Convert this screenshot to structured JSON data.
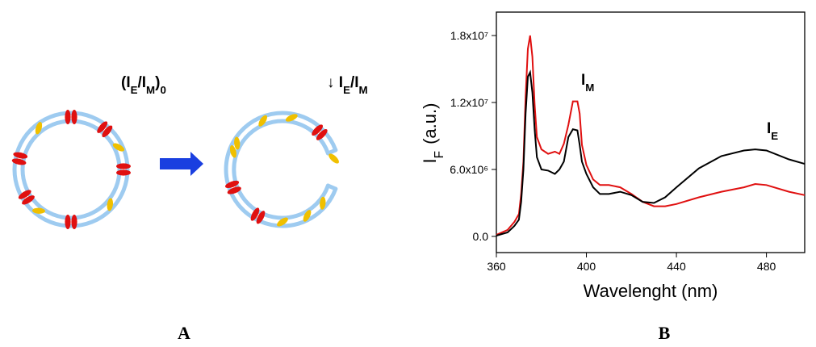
{
  "diagram": {
    "before_label": [
      "(I",
      "E",
      "/I",
      "M",
      ")",
      "0"
    ],
    "after_label": [
      "↓ I",
      "E",
      "/I",
      "M"
    ]
  },
  "panel_labels": [
    "A",
    "B"
  ],
  "chart_data": {
    "type": "line",
    "xlabel": "Wavelenght (nm)",
    "ylabel": {
      "main": "I",
      "sub": "F",
      "unit": "(a.u.)"
    },
    "annotations": [
      [
        "I",
        "M"
      ],
      [
        "I",
        "E"
      ]
    ],
    "x": [
      360,
      365,
      368,
      370,
      371,
      372,
      373,
      374,
      375,
      376,
      377,
      378,
      380,
      383,
      386,
      388,
      390,
      392,
      394,
      396,
      397,
      398,
      400,
      403,
      406,
      410,
      415,
      420,
      425,
      430,
      435,
      440,
      450,
      460,
      470,
      475,
      480,
      490,
      497
    ],
    "series": [
      {
        "color": "#e01010",
        "values": [
          140000,
          580000,
          1300000,
          2000000,
          3800000,
          6700000,
          12500000,
          16800000,
          18000000,
          16100000,
          11800000,
          8900000,
          7800000,
          7400000,
          7600000,
          7400000,
          8300000,
          10000000,
          12100000,
          12100000,
          11000000,
          8200000,
          6400000,
          5100000,
          4600000,
          4600000,
          4400000,
          3800000,
          3100000,
          2700000,
          2700000,
          2900000,
          3500000,
          4000000,
          4400000,
          4700000,
          4600000,
          4000000,
          3700000
        ]
      },
      {
        "color": "#000000",
        "values": [
          70000,
          360000,
          940000,
          1500000,
          3100000,
          6000000,
          11000000,
          14300000,
          14700000,
          12900000,
          9600000,
          7100000,
          6000000,
          5900000,
          5600000,
          6000000,
          6700000,
          8900000,
          9600000,
          9500000,
          8200000,
          6700000,
          5600000,
          4400000,
          3800000,
          3800000,
          4000000,
          3700000,
          3100000,
          3000000,
          3500000,
          4400000,
          6100000,
          7200000,
          7700000,
          7800000,
          7700000,
          6900000,
          6500000
        ]
      }
    ],
    "xlim": [
      360,
      497
    ],
    "xticks": [
      360,
      400,
      440,
      480
    ],
    "ylim": [
      -1450000,
      20100000
    ],
    "yticks": [
      {
        "value": 0,
        "label": "0.0"
      },
      {
        "value": 6000000,
        "label": "6.0x10⁶"
      },
      {
        "value": 12000000,
        "label": "1.2x10⁷"
      },
      {
        "value": 18000000,
        "label": "1.8x10⁷"
      }
    ]
  }
}
